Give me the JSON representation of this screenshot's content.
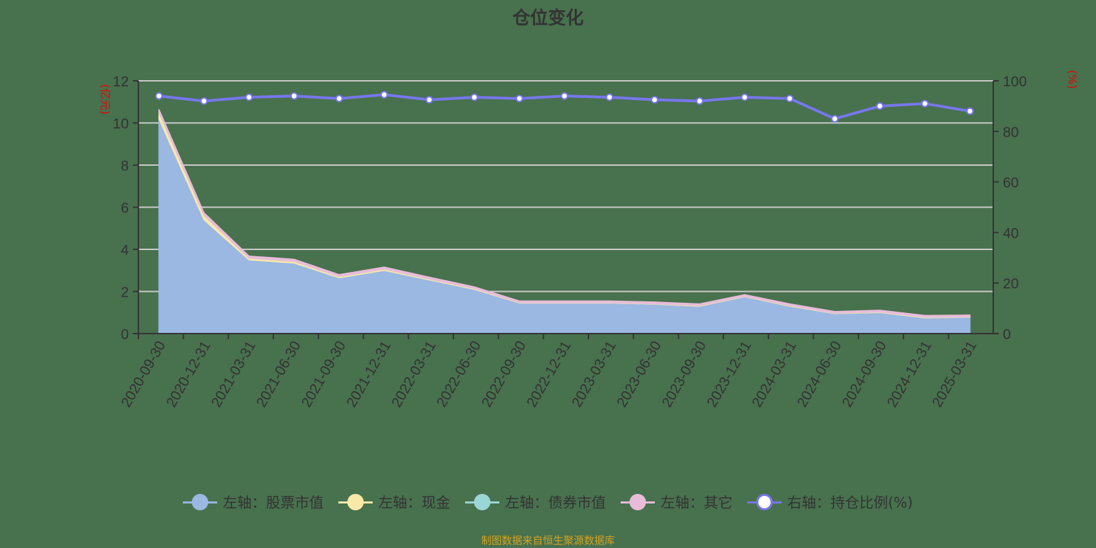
{
  "title": "仓位变化",
  "left_axis_unit": "(亿元)",
  "right_axis_unit": "(%)",
  "footer": "制图数据来自恒生聚源数据库",
  "colors": {
    "stock": "#9ab8e1",
    "cash": "#f9e9a9",
    "bond": "#9bd6d6",
    "other": "#e8bcd9",
    "ratio": "#7777ee",
    "grid": "#cccccc",
    "axis": "#333333"
  },
  "legend": [
    {
      "label": "左轴：股票市值",
      "color": "#9ab8e1",
      "type": "filled"
    },
    {
      "label": "左轴：现金",
      "color": "#f9e9a9",
      "type": "filled"
    },
    {
      "label": "左轴：债券市值",
      "color": "#9bd6d6",
      "type": "filled"
    },
    {
      "label": "左轴：其它",
      "color": "#e8bcd9",
      "type": "filled"
    },
    {
      "label": "右轴：持仓比例(%)",
      "color": "#7777ee",
      "type": "hollow"
    }
  ],
  "chart_data": {
    "type": "area",
    "title": "仓位变化",
    "xlabel": "",
    "ylabel": "(亿元)",
    "y2label": "(%)",
    "ylim": [
      0,
      12
    ],
    "y2lim": [
      0,
      100
    ],
    "yticks": [
      0,
      2,
      4,
      6,
      8,
      10,
      12
    ],
    "y2ticks": [
      0,
      20,
      40,
      60,
      80,
      100
    ],
    "grid": true,
    "legend_position": "bottom",
    "categories": [
      "2020-09-30",
      "2020-12-31",
      "2021-03-31",
      "2021-06-30",
      "2021-09-30",
      "2021-12-31",
      "2022-03-31",
      "2022-06-30",
      "2022-09-30",
      "2022-12-31",
      "2023-03-31",
      "2023-06-30",
      "2023-09-30",
      "2023-12-31",
      "2024-03-31",
      "2024-06-30",
      "2024-09-30",
      "2024-12-31",
      "2025-03-31"
    ],
    "series": [
      {
        "name": "左轴：股票市值",
        "axis": "left",
        "type": "stacked-area",
        "values": [
          10.2,
          5.4,
          3.5,
          3.35,
          2.65,
          3.0,
          2.55,
          2.1,
          1.45,
          1.45,
          1.45,
          1.4,
          1.3,
          1.75,
          1.3,
          0.95,
          1.0,
          0.75,
          0.78
        ]
      },
      {
        "name": "左轴：现金",
        "axis": "left",
        "type": "stacked-area",
        "values": [
          0.3,
          0.22,
          0.08,
          0.08,
          0.06,
          0.06,
          0.04,
          0.04,
          0.02,
          0.02,
          0.02,
          0.02,
          0.03,
          0.02,
          0.03,
          0.02,
          0.03,
          0.03,
          0.02
        ]
      },
      {
        "name": "左轴：债券市值",
        "axis": "left",
        "type": "stacked-area",
        "values": [
          0,
          0,
          0,
          0,
          0,
          0,
          0,
          0,
          0,
          0,
          0,
          0,
          0,
          0,
          0,
          0,
          0,
          0,
          0
        ]
      },
      {
        "name": "左轴：其它",
        "axis": "left",
        "type": "stacked-area",
        "values": [
          0.15,
          0.12,
          0.1,
          0.1,
          0.09,
          0.1,
          0.09,
          0.08,
          0.08,
          0.08,
          0.08,
          0.08,
          0.08,
          0.08,
          0.08,
          0.08,
          0.08,
          0.08,
          0.08
        ]
      },
      {
        "name": "右轴：持仓比例(%)",
        "axis": "right",
        "type": "line",
        "values": [
          94,
          92,
          93.5,
          94,
          93,
          94.5,
          92.5,
          93.5,
          93,
          94,
          93.5,
          92.5,
          92,
          93.5,
          93,
          85,
          90,
          91,
          88
        ]
      }
    ]
  }
}
